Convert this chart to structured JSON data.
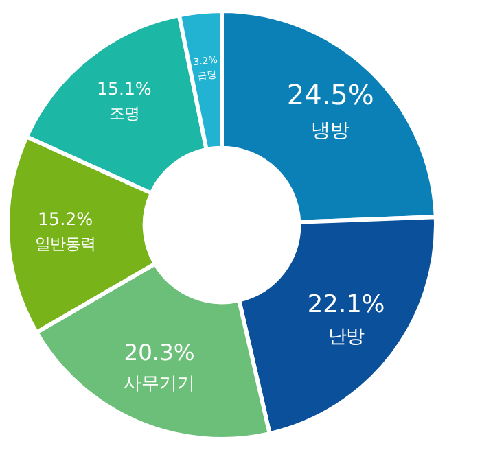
{
  "chart_data": {
    "type": "donut",
    "categories": [
      "냉방",
      "난방",
      "사무기기",
      "일반동력",
      "조명",
      "급탕"
    ],
    "values": [
      24.5,
      22.1,
      20.3,
      15.2,
      15.1,
      3.2
    ],
    "value_labels": [
      "24.5%",
      "22.1%",
      "20.3%",
      "15.2%",
      "15.1%",
      "3.2%"
    ],
    "colors": [
      "#0b80b6",
      "#0a509b",
      "#6bbf78",
      "#78b319",
      "#1db7a6",
      "#22b2d2"
    ],
    "legend": false
  }
}
